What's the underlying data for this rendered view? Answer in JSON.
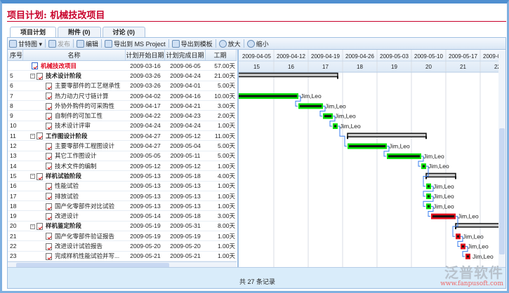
{
  "title": "项目计划: 机械技改项目",
  "tabs": [
    {
      "label": "项目计划",
      "active": true
    },
    {
      "label": "附件 (0)"
    },
    {
      "label": "讨论 (0)"
    }
  ],
  "toolbar": {
    "gantt": "甘特图 ▾",
    "publish": "发布",
    "edit": "编辑",
    "export_ms": "导出到 MS Project",
    "export_tpl": "导出到模板",
    "zoom_in": "放大",
    "zoom_out": "缩小"
  },
  "columns": [
    "序号",
    "名称",
    "计划开始日期",
    "计划完成日期",
    "工期"
  ],
  "rows": [
    {
      "no": "",
      "name": "机械技改项目",
      "start": "2009-03-16",
      "end": "2009-06-05",
      "dur": "57.00天",
      "type": "root"
    },
    {
      "no": "5",
      "name": "技术设计阶段",
      "start": "2009-03-26",
      "end": "2009-04-24",
      "dur": "21.00天",
      "type": "summary"
    },
    {
      "no": "6",
      "name": "主要零部件的工艺继承性",
      "start": "2009-03-26",
      "end": "2009-04-01",
      "dur": "5.00天",
      "type": "task",
      "res": "Leo",
      "status": "done"
    },
    {
      "no": "7",
      "name": "热力动力尺寸链计算",
      "start": "2009-04-02",
      "end": "2009-04-16",
      "dur": "10.00天",
      "type": "task",
      "res": "Jim,Leo",
      "status": "done"
    },
    {
      "no": "8",
      "name": "外协外购件的可采购性",
      "start": "2009-04-17",
      "end": "2009-04-21",
      "dur": "3.00天",
      "type": "task",
      "res": "Jim,Leo",
      "status": "done"
    },
    {
      "no": "9",
      "name": "自制件的可加工性",
      "start": "2009-04-22",
      "end": "2009-04-23",
      "dur": "2.00天",
      "type": "task",
      "res": "Jim,Leo",
      "status": "done"
    },
    {
      "no": "10",
      "name": "技术设计评审",
      "start": "2009-04-24",
      "end": "2009-04-24",
      "dur": "1.00天",
      "type": "task",
      "res": "Jim,Leo",
      "status": "done"
    },
    {
      "no": "11",
      "name": "工作图设计阶段",
      "start": "2009-04-27",
      "end": "2009-05-12",
      "dur": "11.00天",
      "type": "summary"
    },
    {
      "no": "12",
      "name": "主要零部件工程图设计",
      "start": "2009-04-27",
      "end": "2009-05-04",
      "dur": "5.00天",
      "type": "task",
      "res": "Jim,Leo",
      "status": "done"
    },
    {
      "no": "13",
      "name": "其它工作图设计",
      "start": "2009-05-05",
      "end": "2009-05-11",
      "dur": "5.00天",
      "type": "task",
      "res": "Jim,Leo",
      "status": "done"
    },
    {
      "no": "14",
      "name": "技术文件的编制",
      "start": "2009-05-12",
      "end": "2009-05-12",
      "dur": "1.00天",
      "type": "task",
      "res": "Jim,Leo",
      "status": "done"
    },
    {
      "no": "15",
      "name": "样机试验阶段",
      "start": "2009-05-13",
      "end": "2009-05-18",
      "dur": "4.00天",
      "type": "summary"
    },
    {
      "no": "16",
      "name": "性能试验",
      "start": "2009-05-13",
      "end": "2009-05-13",
      "dur": "1.00天",
      "type": "task",
      "res": "Jim,Leo",
      "status": "done"
    },
    {
      "no": "17",
      "name": "排放试验",
      "start": "2009-05-13",
      "end": "2009-05-13",
      "dur": "1.00天",
      "type": "task",
      "res": "Jim,Leo",
      "status": "done"
    },
    {
      "no": "18",
      "name": "国产化零部件对比试验",
      "start": "2009-05-13",
      "end": "2009-05-13",
      "dur": "1.00天",
      "type": "task",
      "res": "Jim,Leo",
      "status": "done"
    },
    {
      "no": "19",
      "name": "改进设计",
      "start": "2009-05-14",
      "end": "2009-05-18",
      "dur": "3.00天",
      "type": "task",
      "res": "Jim,Leo",
      "status": "late"
    },
    {
      "no": "20",
      "name": "样机鉴定阶段",
      "start": "2009-05-19",
      "end": "2009-05-31",
      "dur": "8.00天",
      "type": "summary"
    },
    {
      "no": "21",
      "name": "国产化零部件验证报告",
      "start": "2009-05-19",
      "end": "2009-05-19",
      "dur": "1.00天",
      "type": "task",
      "res": "Jim,Leo",
      "status": "late"
    },
    {
      "no": "22",
      "name": "改进设计试验报告",
      "start": "2009-05-20",
      "end": "2009-05-20",
      "dur": "1.00天",
      "type": "task",
      "res": "Jim,Leo",
      "status": "late"
    },
    {
      "no": "23",
      "name": "完成样机性能试验并写...",
      "start": "2009-05-21",
      "end": "2009-05-21",
      "dur": "1.00天",
      "type": "task",
      "res": "Jim,Leo",
      "status": "late"
    }
  ],
  "timeline": {
    "weeks": [
      "2009-04-05",
      "2009-04-12",
      "2009-04-19",
      "2009-04-26",
      "2009-05-03",
      "2009-05-10",
      "2009-05-17",
      "2009-05-24"
    ],
    "week_numbers": [
      "15",
      "16",
      "17",
      "18",
      "19",
      "20",
      "21",
      "22"
    ]
  },
  "colors": {
    "done": "#00e000",
    "late": "#e0101e",
    "link": "#3a7ff0"
  },
  "status_text": "共 27 条记录",
  "logo": {
    "name": "泛普软件",
    "url": "www.fanpusoft.com"
  }
}
